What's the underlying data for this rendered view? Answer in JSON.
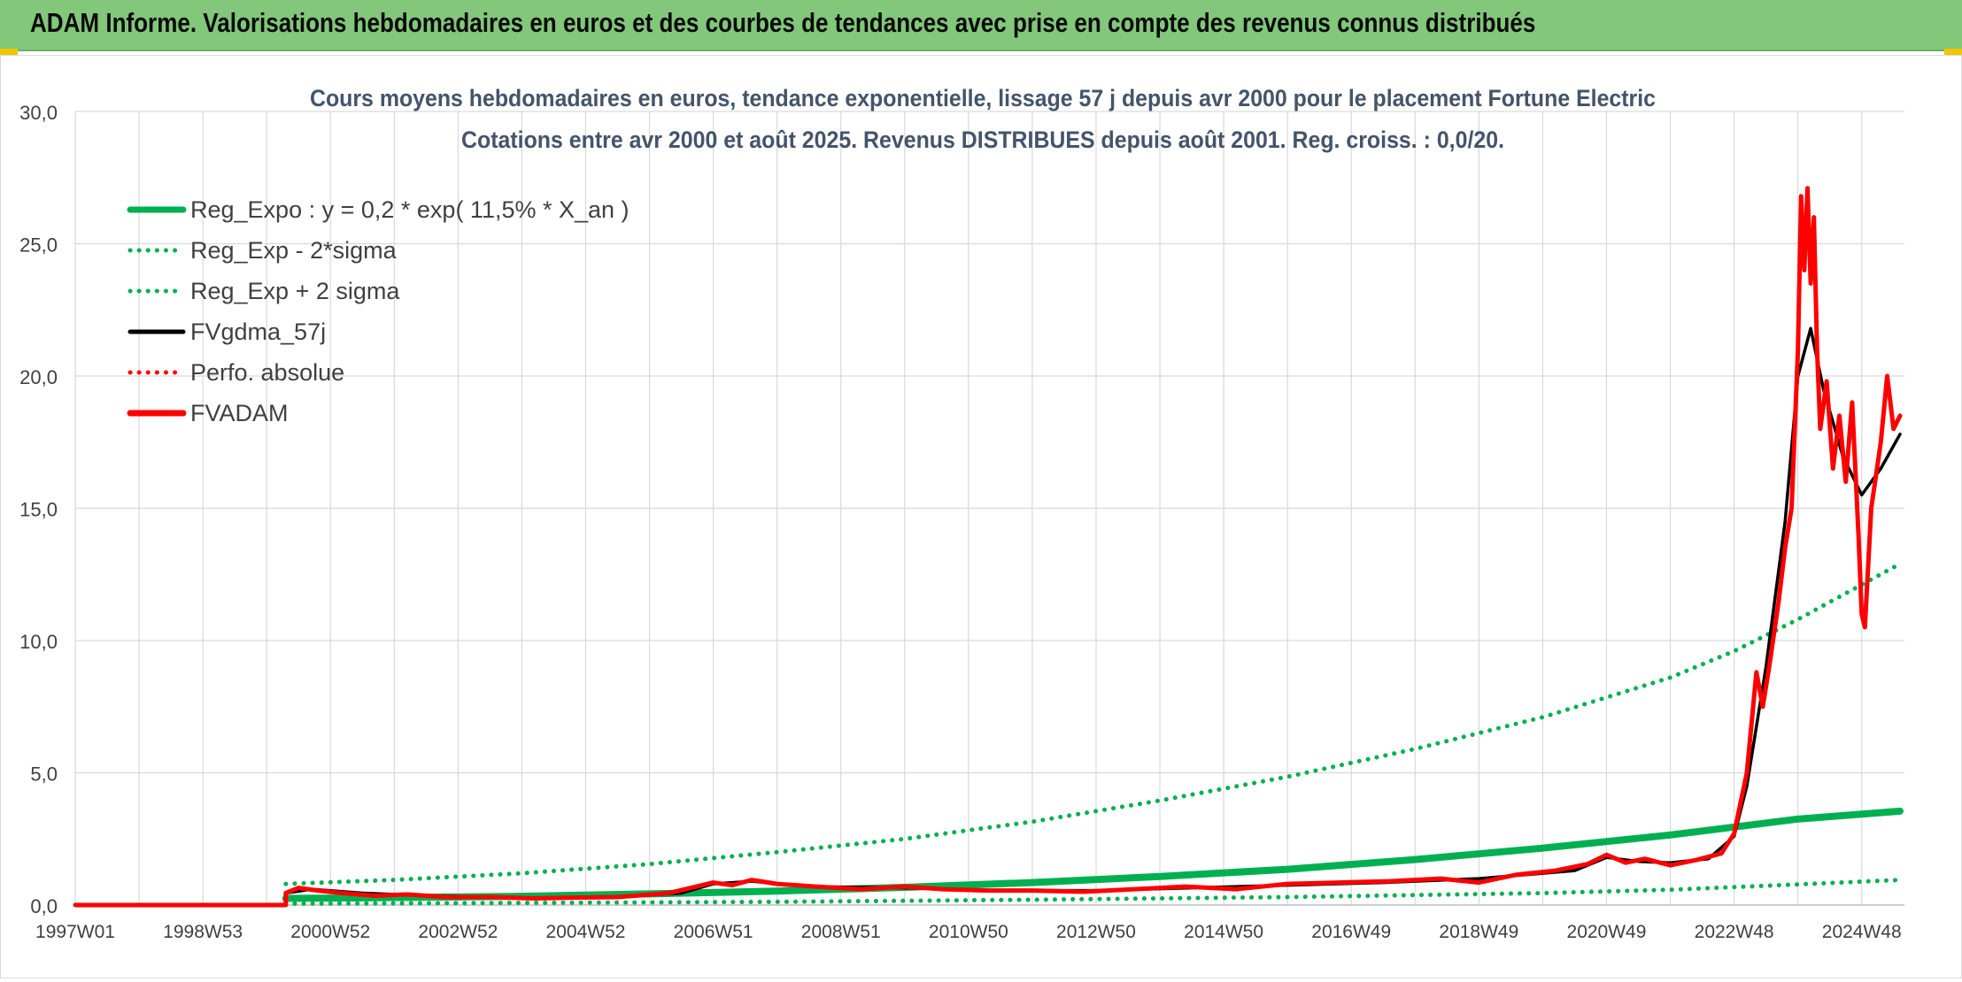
{
  "banner": {
    "title": "ADAM Informe. Valorisations hebdomadaires en euros et des courbes de tendances avec prise en compte des revenus connus distribués"
  },
  "colors": {
    "banner_bg": "#82c77a",
    "green": "#00b050",
    "black": "#000000",
    "red": "#ff0000",
    "grid": "#d9d9d9",
    "text": "#44546a"
  },
  "chart_data": {
    "type": "line",
    "title": "Cours moyens hebdomadaires en euros, tendance exponentielle, lissage 57 j depuis avr 2000 pour le placement Fortune Electric",
    "subtitle": "Cotations entre avr 2000 et août 2025. Revenus DISTRIBUES depuis août 2001. Reg. croiss. : 0,0/20.",
    "xlabel": "",
    "ylabel": "",
    "x_range": [
      1997.0,
      2025.67
    ],
    "ylim": [
      0,
      30
    ],
    "y_ticks": [
      "0,0",
      "5,0",
      "10,0",
      "15,0",
      "20,0",
      "25,0",
      "30,0"
    ],
    "x_ticks": [
      {
        "label": "1997W01",
        "x": 1997.0
      },
      {
        "label": "1998W53",
        "x": 1999.0
      },
      {
        "label": "2000W52",
        "x": 2001.0
      },
      {
        "label": "2002W52",
        "x": 2003.0
      },
      {
        "label": "2004W52",
        "x": 2005.0
      },
      {
        "label": "2006W51",
        "x": 2007.0
      },
      {
        "label": "2008W51",
        "x": 2009.0
      },
      {
        "label": "2010W50",
        "x": 2011.0
      },
      {
        "label": "2012W50",
        "x": 2013.0
      },
      {
        "label": "2014W50",
        "x": 2015.0
      },
      {
        "label": "2016W49",
        "x": 2017.0
      },
      {
        "label": "2018W49",
        "x": 2019.0
      },
      {
        "label": "2020W49",
        "x": 2021.0
      },
      {
        "label": "2022W48",
        "x": 2023.0
      },
      {
        "label": "2024W48",
        "x": 2025.0
      }
    ],
    "grid": true,
    "legend_position": "top-left",
    "series": [
      {
        "name": "Reg_Expo : y = 0,2 * exp( 11,5% *  X_an )",
        "color": "#00b050",
        "style": "solid-thick",
        "points": [
          [
            2000.3,
            0.25
          ],
          [
            2002,
            0.28
          ],
          [
            2004,
            0.33
          ],
          [
            2006,
            0.42
          ],
          [
            2008,
            0.53
          ],
          [
            2010,
            0.67
          ],
          [
            2012,
            0.85
          ],
          [
            2014,
            1.08
          ],
          [
            2016,
            1.35
          ],
          [
            2018,
            1.72
          ],
          [
            2020,
            2.15
          ],
          [
            2022,
            2.65
          ],
          [
            2023,
            2.95
          ],
          [
            2024,
            3.25
          ],
          [
            2025.6,
            3.55
          ]
        ]
      },
      {
        "name": "Reg_Exp - 2*sigma",
        "color": "#00b050",
        "style": "dotted",
        "points": [
          [
            2000.3,
            0.05
          ],
          [
            2004,
            0.08
          ],
          [
            2008,
            0.12
          ],
          [
            2012,
            0.2
          ],
          [
            2016,
            0.3
          ],
          [
            2020,
            0.45
          ],
          [
            2022,
            0.58
          ],
          [
            2024,
            0.78
          ],
          [
            2025.6,
            0.95
          ]
        ]
      },
      {
        "name": "Reg_Exp + 2 sigma",
        "color": "#00b050",
        "style": "dotted",
        "points": [
          [
            2000.3,
            0.8
          ],
          [
            2002,
            0.95
          ],
          [
            2004,
            1.2
          ],
          [
            2006,
            1.55
          ],
          [
            2008,
            2.0
          ],
          [
            2010,
            2.5
          ],
          [
            2012,
            3.15
          ],
          [
            2014,
            3.95
          ],
          [
            2016,
            4.85
          ],
          [
            2018,
            5.9
          ],
          [
            2020,
            7.1
          ],
          [
            2022,
            8.6
          ],
          [
            2023,
            9.6
          ],
          [
            2024,
            10.8
          ],
          [
            2025.6,
            12.9
          ]
        ]
      },
      {
        "name": "FVgdma_57j",
        "color": "#000000",
        "style": "solid",
        "points": [
          [
            1997.0,
            0.0
          ],
          [
            2000.3,
            0.0
          ],
          [
            2000.3,
            0.45
          ],
          [
            2000.7,
            0.6
          ],
          [
            2001.5,
            0.45
          ],
          [
            2002.5,
            0.35
          ],
          [
            2003.5,
            0.3
          ],
          [
            2004.5,
            0.25
          ],
          [
            2005.5,
            0.3
          ],
          [
            2006.5,
            0.45
          ],
          [
            2007.0,
            0.8
          ],
          [
            2007.6,
            0.9
          ],
          [
            2008.5,
            0.7
          ],
          [
            2010.0,
            0.65
          ],
          [
            2011.5,
            0.55
          ],
          [
            2013.0,
            0.55
          ],
          [
            2014.5,
            0.65
          ],
          [
            2016.0,
            0.75
          ],
          [
            2017.5,
            0.85
          ],
          [
            2019.0,
            1.0
          ],
          [
            2020.5,
            1.3
          ],
          [
            2021.0,
            1.8
          ],
          [
            2021.5,
            1.65
          ],
          [
            2022.0,
            1.6
          ],
          [
            2022.6,
            1.75
          ],
          [
            2023.0,
            2.6
          ],
          [
            2023.2,
            4.5
          ],
          [
            2023.5,
            9.0
          ],
          [
            2023.8,
            14.5
          ],
          [
            2024.0,
            20.0
          ],
          [
            2024.2,
            21.8
          ],
          [
            2024.4,
            19.5
          ],
          [
            2024.7,
            17.0
          ],
          [
            2025.0,
            15.5
          ],
          [
            2025.3,
            16.5
          ],
          [
            2025.6,
            17.8
          ]
        ]
      },
      {
        "name": "Perfo. absolue",
        "color": "#ff0000",
        "style": "dotted",
        "points": []
      },
      {
        "name": "FVADAM",
        "color": "#ff0000",
        "style": "solid-thick",
        "points": [
          [
            1997.0,
            0.0
          ],
          [
            2000.3,
            0.0
          ],
          [
            2000.3,
            0.45
          ],
          [
            2000.5,
            0.65
          ],
          [
            2000.8,
            0.55
          ],
          [
            2001.2,
            0.45
          ],
          [
            2001.7,
            0.35
          ],
          [
            2002.2,
            0.4
          ],
          [
            2002.8,
            0.3
          ],
          [
            2003.5,
            0.3
          ],
          [
            2004.2,
            0.25
          ],
          [
            2004.8,
            0.28
          ],
          [
            2005.5,
            0.3
          ],
          [
            2006.3,
            0.45
          ],
          [
            2007.0,
            0.85
          ],
          [
            2007.3,
            0.75
          ],
          [
            2007.6,
            0.95
          ],
          [
            2008.0,
            0.8
          ],
          [
            2008.6,
            0.7
          ],
          [
            2009.3,
            0.6
          ],
          [
            2010.0,
            0.7
          ],
          [
            2010.6,
            0.6
          ],
          [
            2011.3,
            0.55
          ],
          [
            2012.0,
            0.55
          ],
          [
            2012.8,
            0.5
          ],
          [
            2013.6,
            0.6
          ],
          [
            2014.4,
            0.7
          ],
          [
            2015.2,
            0.6
          ],
          [
            2016.0,
            0.8
          ],
          [
            2016.8,
            0.85
          ],
          [
            2017.6,
            0.9
          ],
          [
            2018.4,
            1.0
          ],
          [
            2019.0,
            0.85
          ],
          [
            2019.6,
            1.15
          ],
          [
            2020.2,
            1.3
          ],
          [
            2020.7,
            1.55
          ],
          [
            2021.0,
            1.9
          ],
          [
            2021.3,
            1.6
          ],
          [
            2021.6,
            1.75
          ],
          [
            2022.0,
            1.5
          ],
          [
            2022.4,
            1.7
          ],
          [
            2022.8,
            1.95
          ],
          [
            2023.0,
            2.7
          ],
          [
            2023.2,
            5.0
          ],
          [
            2023.35,
            8.8
          ],
          [
            2023.45,
            7.5
          ],
          [
            2023.55,
            9.0
          ],
          [
            2023.7,
            11.5
          ],
          [
            2023.8,
            13.5
          ],
          [
            2023.9,
            15.0
          ],
          [
            2024.0,
            21.0
          ],
          [
            2024.05,
            26.8
          ],
          [
            2024.1,
            24.0
          ],
          [
            2024.15,
            27.1
          ],
          [
            2024.2,
            23.5
          ],
          [
            2024.25,
            26.0
          ],
          [
            2024.3,
            21.0
          ],
          [
            2024.35,
            18.0
          ],
          [
            2024.45,
            19.8
          ],
          [
            2024.55,
            16.5
          ],
          [
            2024.65,
            18.5
          ],
          [
            2024.75,
            16.0
          ],
          [
            2024.85,
            19.0
          ],
          [
            2024.95,
            14.0
          ],
          [
            2025.0,
            11.0
          ],
          [
            2025.05,
            10.5
          ],
          [
            2025.15,
            15.0
          ],
          [
            2025.3,
            17.5
          ],
          [
            2025.4,
            20.0
          ],
          [
            2025.5,
            18.0
          ],
          [
            2025.6,
            18.5
          ]
        ]
      }
    ]
  }
}
